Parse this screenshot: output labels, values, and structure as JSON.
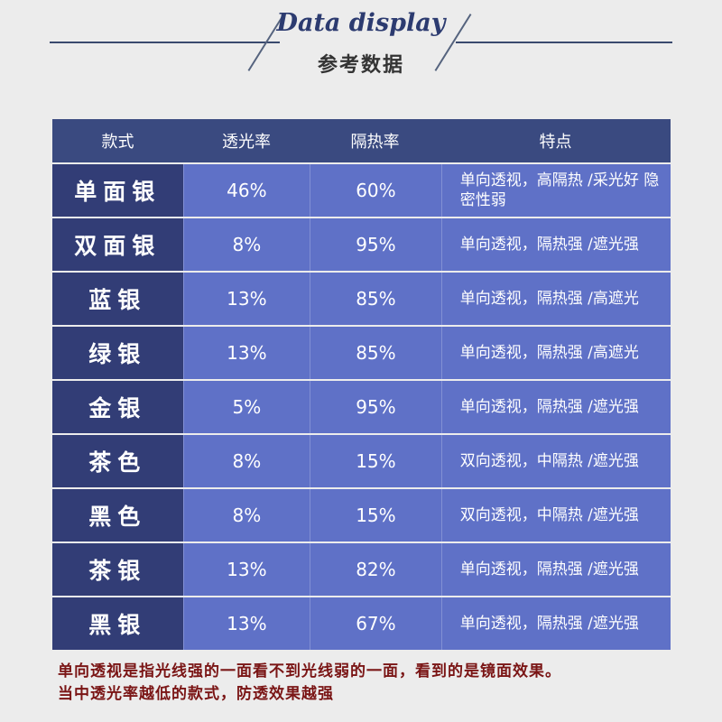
{
  "header": {
    "title_en": "Data display",
    "title_cn": "参考数据"
  },
  "table": {
    "headers": [
      "款式",
      "透光率",
      "隔热率",
      "特点"
    ],
    "rows": [
      {
        "style": "单面银",
        "transmittance": "46%",
        "insulation": "60%",
        "feature": "单向透视，高隔热 /采光好 隐密性弱"
      },
      {
        "style": "双面银",
        "transmittance": "8%",
        "insulation": "95%",
        "feature": "单向透视，隔热强 /遮光强"
      },
      {
        "style": "蓝银",
        "transmittance": "13%",
        "insulation": "85%",
        "feature": "单向透视，隔热强 /高遮光"
      },
      {
        "style": "绿银",
        "transmittance": "13%",
        "insulation": "85%",
        "feature": "单向透视，隔热强 /高遮光"
      },
      {
        "style": "金银",
        "transmittance": "5%",
        "insulation": "95%",
        "feature": "单向透视，隔热强 /遮光强"
      },
      {
        "style": "茶色",
        "transmittance": "8%",
        "insulation": "15%",
        "feature": "双向透视，中隔热 /遮光强"
      },
      {
        "style": "黑色",
        "transmittance": "8%",
        "insulation": "15%",
        "feature": "双向透视，中隔热 /遮光强"
      },
      {
        "style": "茶银",
        "transmittance": "13%",
        "insulation": "82%",
        "feature": "单向透视，隔热强 /遮光强"
      },
      {
        "style": "黑银",
        "transmittance": "13%",
        "insulation": "67%",
        "feature": "单向透视，隔热强 /遮光强"
      }
    ]
  },
  "footnote": {
    "line1": "单向透视是指光线强的一面看不到光线弱的一面，看到的是镜面效果。",
    "line2": "当中透光率越低的款式，防透效果越强"
  },
  "colors": {
    "header_bg": "#3a4a80",
    "first_col_bg": "#323d76",
    "cell_bg": "#5f71c7",
    "footnote_text": "#7a1515"
  }
}
